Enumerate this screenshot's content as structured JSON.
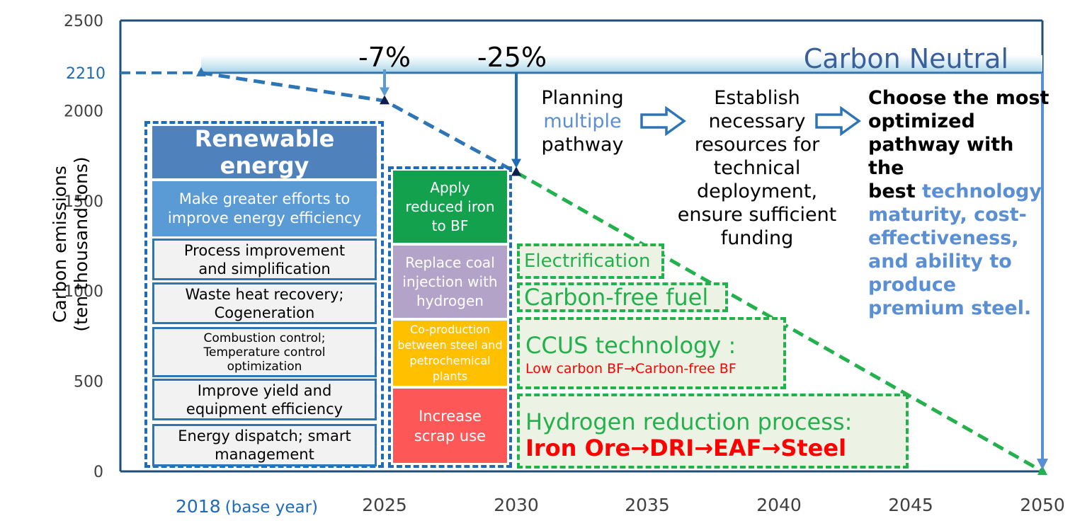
{
  "chart_data": {
    "type": "line",
    "ylabel_lines": [
      "Carbon emissions",
      "(ten thousand tons)"
    ],
    "yticks": [
      0,
      500,
      1000,
      1500,
      2000,
      2500
    ],
    "ylim": [
      0,
      2500
    ],
    "extra_ytick": {
      "label": "2210",
      "value": 2210
    },
    "x_categories": [
      "2018",
      "2025",
      "2030",
      "2035",
      "2040",
      "2045",
      "2050"
    ],
    "base_year_suffix": "(base year)",
    "series": [
      {
        "points": [
          {
            "x": "2018",
            "y": 2210
          },
          {
            "x": "2025",
            "y": 2055
          },
          {
            "x": "2030",
            "y": 1658
          }
        ],
        "color": "#2e75b6"
      },
      {
        "points": [
          {
            "x": "2030",
            "y": 1658
          },
          {
            "x": "2050",
            "y": 0
          }
        ],
        "color": "#22b14c"
      }
    ],
    "annotations": [
      {
        "text": "-7%",
        "x": "2025"
      },
      {
        "text": "-25%",
        "x": "2030"
      }
    ],
    "banner": "Carbon Neutral"
  },
  "steps": {
    "step1": {
      "l1": "Planning",
      "l2": "multiple",
      "l3": "pathway"
    },
    "step2": [
      "Establish",
      "necessary",
      "resources for",
      "technical",
      "deployment,",
      "ensure sufficient",
      "funding"
    ],
    "step3": {
      "black": [
        "Choose the most",
        "optimized",
        "pathway with the",
        "best "
      ],
      "blue_first": "technology",
      "blue": [
        "maturity, cost-",
        "effectiveness,",
        "and ability to",
        "produce",
        "premium steel."
      ]
    }
  },
  "left_column": {
    "title": "Renewable energy",
    "efficiency": [
      "Make greater efforts to",
      "improve energy efficiency"
    ],
    "items": [
      [
        "Process improvement",
        "and simplification"
      ],
      [
        "Waste heat recovery;",
        "Cogeneration"
      ],
      [
        "Combustion control;",
        "Temperature control",
        "optimization"
      ],
      [
        "Improve yield and",
        "equipment efficiency"
      ],
      [
        "Energy dispatch; smart",
        "management"
      ]
    ]
  },
  "mid_column": [
    [
      "Apply",
      "reduced iron",
      "to BF"
    ],
    [
      "Replace coal",
      "injection with",
      "hydrogen"
    ],
    [
      "Co-production",
      "between steel and",
      "petrochemical",
      "plants"
    ],
    [
      "Increase",
      "scrap use"
    ]
  ],
  "right_boxes": {
    "electrification": "Electrification",
    "carbon_free_fuel": "Carbon-free fuel",
    "ccus_title": "CCUS technology :",
    "ccus_sub": "Low carbon BF→Carbon-free BF",
    "hydrogen_title": "Hydrogen reduction process:",
    "hydrogen_sub": "Iron Ore→DRI→EAF→Steel"
  },
  "colors": {
    "axis": "#1f4e79",
    "blue_dash": "#2e75b6",
    "green_dash": "#22b14c",
    "dark_blue_title": "#3a5f9a",
    "renewable": "#4f81bd",
    "efficiency": "#5b9bd5",
    "green_box": "#13a14d",
    "purple_box": "#b4a3c8",
    "gold_box": "#ffc000",
    "red_box": "#fe5757",
    "red_text": "#ff0000"
  }
}
